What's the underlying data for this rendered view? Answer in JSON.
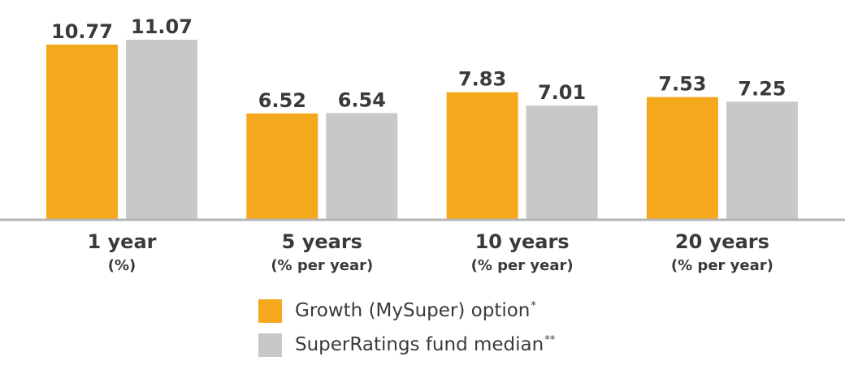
{
  "chart_data": {
    "type": "bar",
    "categories": [
      {
        "label": "1 year",
        "sublabel": "(%)"
      },
      {
        "label": "5 years",
        "sublabel": "(% per year)"
      },
      {
        "label": "10 years",
        "sublabel": "(% per year)"
      },
      {
        "label": "20 years",
        "sublabel": "(% per year)"
      }
    ],
    "series": [
      {
        "name": "Growth (MySuper) option",
        "marker": "*",
        "color": "#F5A81C",
        "values": [
          10.77,
          6.52,
          7.83,
          7.53
        ]
      },
      {
        "name": "SuperRatings fund median",
        "marker": "**",
        "color": "#C8C8C8",
        "values": [
          11.07,
          6.54,
          7.01,
          7.25
        ]
      }
    ],
    "title": "",
    "xlabel": "",
    "ylabel": "",
    "ylim": [
      0,
      11.07
    ],
    "grid": false,
    "legend_position": "bottom"
  }
}
